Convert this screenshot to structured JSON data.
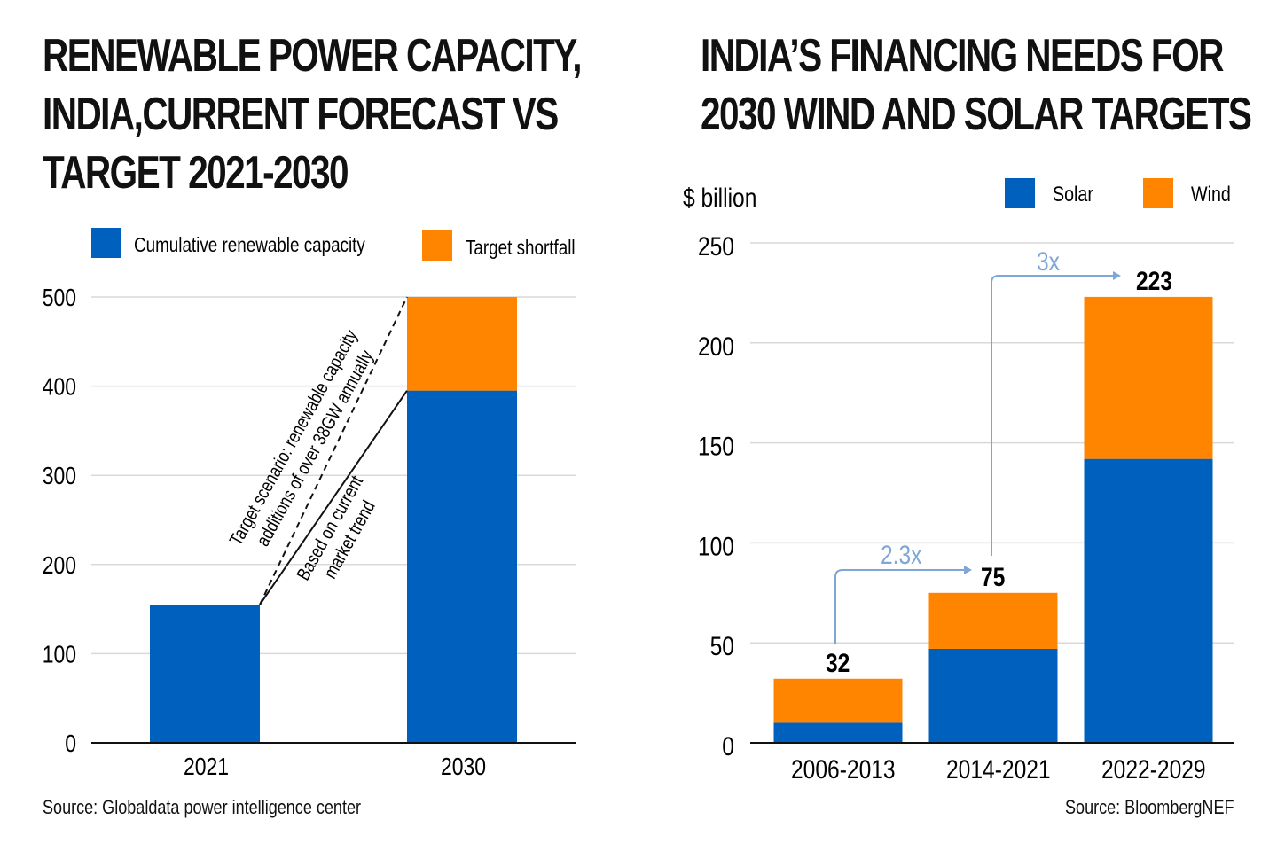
{
  "colors": {
    "solar_blue": "#0060be",
    "orange": "#ff8400",
    "grid": "#d9d9d9",
    "axis": "#111111",
    "arrow": "#7ea6d6"
  },
  "chart_data": [
    {
      "type": "bar",
      "stacked": true,
      "title_lines": [
        "RENEWABLE POWER CAPACITY,",
        "INDIA,CURRENT FORECAST VS",
        "TARGET 2021-2030"
      ],
      "categories": [
        "2021",
        "2030"
      ],
      "series": [
        {
          "name": "Cumulative renewable capacity",
          "color": "#0060be",
          "values": [
            155,
            395
          ]
        },
        {
          "name": "Target shortfall",
          "color": "#ff8400",
          "values": [
            0,
            105
          ]
        }
      ],
      "ylim": [
        0,
        500
      ],
      "yticks": [
        "0",
        "100",
        "200",
        "300",
        "400",
        "500"
      ],
      "grid": true,
      "legend": "top",
      "annotations": {
        "target_line": [
          "Target scenario: renewable capacity",
          "additions of over 38GW annually"
        ],
        "trend_line": [
          "Based on current",
          "market trend"
        ]
      },
      "source": "Source: Globaldata power intelligence center"
    },
    {
      "type": "bar",
      "stacked": true,
      "title_lines": [
        "INDIA’S FINANCING NEEDS FOR",
        "2030 WIND AND SOLAR TARGETS"
      ],
      "ylabel": "$ billion",
      "categories": [
        "2006-2013",
        "2014-2021",
        "2022-2029"
      ],
      "series": [
        {
          "name": "Solar",
          "color": "#0060be",
          "values": [
            10,
            47,
            142
          ]
        },
        {
          "name": "Wind",
          "color": "#ff8400",
          "values": [
            22,
            28,
            81
          ]
        }
      ],
      "totals": [
        "32",
        "75",
        "223"
      ],
      "ylim": [
        0,
        250
      ],
      "yticks": [
        "0",
        "50",
        "100",
        "150",
        "200",
        "250"
      ],
      "grid": true,
      "legend": "top-right",
      "growth_labels": [
        "2.3x",
        "3x"
      ],
      "source": "Source: BloombergNEF"
    }
  ]
}
